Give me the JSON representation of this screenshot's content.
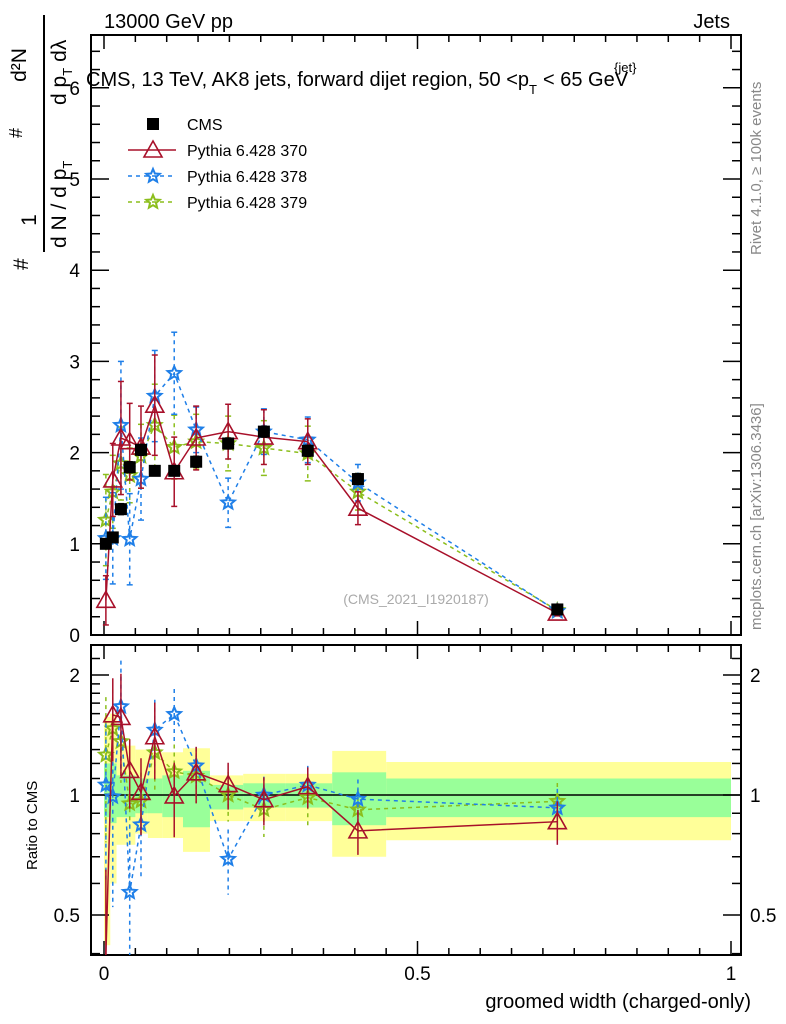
{
  "header": {
    "left": "13000 GeV pp",
    "right": "Jets",
    "rivet": "Rivet 4.1.0, ≥ 100k events",
    "mcplots": "mcplots.cern.ch [arXiv:1306.3436]",
    "watermark": "(CMS_2021_I1920187)"
  },
  "ylabel_parts": {
    "hash1": "#",
    "num1": "1",
    "den1": "d N / d p",
    "sub1": "T",
    "hash2": "#",
    "num2": "d²N",
    "den2": "d p",
    "sub2": "T",
    "den2b": "dλ"
  },
  "chart_data": [
    {
      "type": "scatter",
      "title": "CMS, 13 TeV, AK8 jets, forward dijet region, 50 <p",
      "title_sup": "{jet}",
      "title_sub": "T",
      "title_end": "< 65 GeV",
      "xlabel": "groomed width (charged-only)",
      "xlim": [
        0,
        1
      ],
      "ylim": [
        0,
        6.58
      ],
      "yticks": [
        "0",
        "1",
        "2",
        "3",
        "4",
        "5",
        "6"
      ],
      "xticks": [
        "0",
        "0.5",
        "1"
      ],
      "legend_position": "top-left",
      "bin_edges": [
        0,
        0.01,
        0.02,
        0.035,
        0.05,
        0.07,
        0.093,
        0.126,
        0.169,
        0.222,
        0.29,
        0.364,
        0.45,
        1.0
      ],
      "x": [
        0.003,
        0.014,
        0.027,
        0.041,
        0.059,
        0.081,
        0.112,
        0.147,
        0.198,
        0.255,
        0.325,
        0.405,
        0.723
      ],
      "series": [
        {
          "name": "CMS",
          "color": "#000000",
          "marker": "square",
          "line": "none",
          "values": [
            1.0,
            1.07,
            1.38,
            1.84,
            2.03,
            1.8,
            1.8,
            1.9,
            2.1,
            2.23,
            2.02,
            1.71,
            0.28
          ],
          "yerr": [
            0.04,
            0.05,
            0.06,
            0.06,
            0.06,
            0.05,
            0.05,
            0.06,
            0.06,
            0.06,
            0.06,
            0.06,
            0.02
          ]
        },
        {
          "name": "Pythia 6.428 370",
          "color": "#a8102a",
          "marker": "triangle",
          "line": "solid",
          "values": [
            0.38,
            1.7,
            2.16,
            2.12,
            2.06,
            2.52,
            1.79,
            2.16,
            2.23,
            2.17,
            2.12,
            1.39,
            0.24
          ],
          "yerr": [
            0.27,
            0.4,
            0.62,
            0.42,
            0.45,
            0.55,
            0.38,
            0.35,
            0.3,
            0.3,
            0.25,
            0.18,
            0.03
          ]
        },
        {
          "name": "Pythia 6.428 378",
          "color": "#1f7fe8",
          "marker": "star",
          "line": "dashed",
          "values": [
            1.06,
            1.06,
            2.3,
            1.05,
            1.71,
            2.62,
            2.87,
            2.25,
            1.45,
            2.23,
            2.14,
            1.67,
            0.26
          ],
          "yerr": [
            0.45,
            0.5,
            0.7,
            0.5,
            0.45,
            0.5,
            0.45,
            0.25,
            0.27,
            0.25,
            0.25,
            0.2,
            0.03
          ]
        },
        {
          "name": "Pythia 6.428 379",
          "color": "#8cbe1c",
          "marker": "star",
          "line": "dashed",
          "values": [
            1.26,
            1.57,
            1.88,
            1.75,
            1.96,
            2.3,
            2.06,
            2.12,
            2.1,
            2.05,
            1.99,
            1.57,
            0.27
          ],
          "yerr": [
            0.5,
            0.4,
            0.4,
            0.3,
            0.35,
            0.45,
            0.35,
            0.3,
            0.3,
            0.3,
            0.3,
            0.2,
            0.03
          ]
        }
      ]
    },
    {
      "type": "scatter",
      "ylabel": "Ratio to CMS",
      "yscale": "log",
      "ylim": [
        0.4,
        2.38
      ],
      "yticks": [
        "0.5",
        "1",
        "2"
      ],
      "reference": 1,
      "band_total": [
        [
          0.42,
          1.57
        ],
        [
          0.6,
          1.6
        ],
        [
          0.75,
          1.35
        ],
        [
          0.75,
          1.33
        ],
        [
          0.8,
          1.3
        ],
        [
          0.78,
          1.28
        ],
        [
          0.78,
          1.28
        ],
        [
          0.72,
          1.31
        ],
        [
          0.86,
          1.12
        ],
        [
          0.86,
          1.13
        ],
        [
          0.86,
          1.13
        ],
        [
          0.7,
          1.29
        ],
        [
          0.77,
          1.21
        ]
      ],
      "band_stat": [
        [
          0.88,
          1.2
        ],
        [
          0.85,
          1.2
        ],
        [
          0.88,
          1.12
        ],
        [
          0.88,
          1.12
        ],
        [
          0.9,
          1.1
        ],
        [
          0.9,
          1.1
        ],
        [
          0.88,
          1.12
        ],
        [
          0.83,
          1.15
        ],
        [
          0.92,
          1.06
        ],
        [
          0.93,
          1.07
        ],
        [
          0.93,
          1.07
        ],
        [
          0.84,
          1.14
        ],
        [
          0.88,
          1.1
        ]
      ],
      "band_total_color": "#ffff99",
      "band_stat_color": "#99ff99"
    }
  ]
}
